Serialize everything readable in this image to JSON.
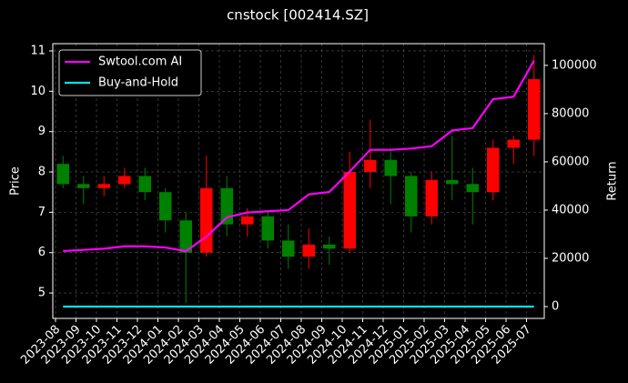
{
  "chart_data": {
    "type": "candlestick",
    "title": "cnstock [002414.SZ]",
    "ylabel": "Price",
    "y2label": "Return",
    "x": [
      "2023-08",
      "2023-09",
      "2023-10",
      "2023-11",
      "2023-12",
      "2024-01",
      "2024-02",
      "2024-03",
      "2024-04",
      "2024-05",
      "2024-06",
      "2024-07",
      "2024-08",
      "2024-09",
      "2024-10",
      "2024-11",
      "2024-12",
      "2025-01",
      "2025-02",
      "2025-03",
      "2025-04",
      "2025-05",
      "2025-06",
      "2025-07"
    ],
    "open": [
      8.2,
      7.7,
      7.6,
      7.7,
      7.9,
      7.5,
      6.8,
      6.0,
      7.6,
      6.7,
      6.9,
      6.3,
      5.9,
      6.2,
      6.1,
      8.0,
      8.3,
      7.9,
      6.9,
      7.8,
      7.7,
      7.5,
      8.6,
      8.8
    ],
    "high": [
      8.4,
      7.9,
      7.9,
      8.1,
      8.1,
      7.6,
      7.0,
      8.4,
      7.9,
      7.1,
      7.0,
      6.7,
      6.6,
      6.4,
      8.5,
      9.3,
      8.6,
      8.0,
      8.0,
      8.9,
      8.1,
      8.8,
      8.9,
      10.9
    ],
    "low": [
      7.6,
      7.2,
      7.4,
      7.6,
      7.3,
      6.5,
      4.75,
      5.9,
      6.4,
      6.4,
      6.1,
      5.6,
      5.6,
      5.7,
      6.0,
      7.6,
      7.2,
      6.5,
      6.7,
      7.3,
      6.7,
      7.3,
      8.2,
      8.4
    ],
    "close": [
      7.7,
      7.6,
      7.7,
      7.9,
      7.5,
      6.8,
      6.0,
      7.6,
      6.7,
      6.9,
      6.3,
      5.9,
      6.2,
      6.1,
      8.0,
      8.3,
      7.9,
      6.9,
      7.8,
      7.7,
      7.5,
      8.6,
      8.8,
      10.3
    ],
    "up_color": "#ff0000",
    "down_color": "#008000",
    "ylim": [
      4.37,
      11.18
    ],
    "yticks": [
      5,
      6,
      7,
      8,
      9,
      10,
      11
    ],
    "y2lim": [
      -4900,
      109000
    ],
    "y2ticks": [
      0,
      20000,
      40000,
      60000,
      80000,
      100000
    ],
    "series": [
      {
        "name": "Swtool.com AI",
        "color": "#ff00ff",
        "axis": "y2",
        "values": [
          23000,
          23500,
          24000,
          25000,
          25000,
          24500,
          23000,
          29000,
          37000,
          39000,
          39500,
          40000,
          46500,
          47500,
          56000,
          65000,
          65000,
          65500,
          66500,
          73000,
          74000,
          86000,
          87000,
          102000
        ]
      },
      {
        "name": "Buy-and-Hold",
        "color": "#00e5e5",
        "axis": "y2",
        "values": [
          0,
          0,
          0,
          0,
          0,
          0,
          0,
          0,
          0,
          0,
          0,
          0,
          0,
          0,
          0,
          0,
          0,
          0,
          0,
          0,
          0,
          0,
          0,
          0
        ]
      }
    ],
    "grid": true,
    "legend": "upper-left"
  }
}
